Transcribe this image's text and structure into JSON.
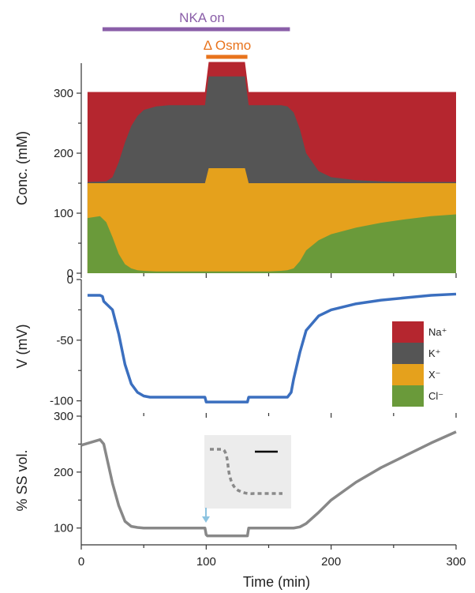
{
  "chart_data": [
    {
      "panel": "concentration",
      "type": "area",
      "ylabel": "Conc. (mM)",
      "xlim": [
        0,
        300
      ],
      "ylim": [
        0,
        350
      ],
      "yticks": [
        0,
        100,
        200,
        300
      ],
      "series": [
        {
          "name": "Cl⁻",
          "color": "#6a9a3a",
          "x": [
            5,
            15,
            20,
            25,
            30,
            35,
            40,
            45,
            50,
            60,
            70,
            80,
            90,
            100,
            110,
            120,
            130,
            140,
            150,
            160,
            165,
            170,
            175,
            180,
            190,
            200,
            220,
            240,
            260,
            280,
            300
          ],
          "y": [
            92,
            95,
            85,
            60,
            32,
            15,
            8,
            5,
            4,
            3,
            3,
            3,
            3,
            3,
            3,
            3,
            3,
            3,
            3,
            4,
            5,
            8,
            20,
            38,
            55,
            65,
            76,
            84,
            90,
            95,
            98
          ]
        },
        {
          "name": "X⁻",
          "color": "#e5a11c",
          "x": [
            5,
            99,
            102,
            131,
            134,
            300
          ],
          "y": [
            150,
            150,
            175,
            175,
            150,
            150
          ]
        },
        {
          "name": "K⁺",
          "color": "#555555",
          "x": [
            5,
            20,
            25,
            30,
            35,
            40,
            45,
            50,
            60,
            70,
            80,
            90,
            99,
            102,
            131,
            134,
            140,
            150,
            160,
            165,
            170,
            175,
            180,
            190,
            200,
            220,
            240,
            260,
            280,
            300
          ],
          "y": [
            152,
            153,
            160,
            185,
            218,
            245,
            262,
            272,
            278,
            280,
            280,
            280,
            280,
            328,
            328,
            280,
            280,
            280,
            280,
            278,
            268,
            240,
            200,
            170,
            160,
            155,
            153,
            152,
            152,
            152
          ]
        },
        {
          "name": "Na⁺",
          "color": "#b5262f",
          "x": [
            5,
            99,
            102,
            131,
            134,
            300
          ],
          "y": [
            302,
            302,
            352,
            352,
            302,
            302
          ]
        }
      ],
      "annotations": [
        {
          "text": "NKA on",
          "x_start": 17,
          "x_end": 167,
          "color": "#8a5ea8"
        },
        {
          "text": "Δ Osmo",
          "x_start": 100,
          "x_end": 133,
          "color": "#e8731c"
        }
      ]
    },
    {
      "panel": "voltage",
      "type": "line",
      "ylabel": "V (mV)",
      "xlim": [
        0,
        300
      ],
      "ylim": [
        -110,
        0
      ],
      "yticks": [
        -100,
        -50,
        0
      ],
      "series": [
        {
          "color": "#3b6fbf",
          "x": [
            5,
            15,
            17,
            18,
            20,
            25,
            30,
            35,
            40,
            45,
            50,
            55,
            60,
            70,
            80,
            90,
            99,
            100,
            101,
            130,
            133,
            134,
            140,
            150,
            160,
            165,
            168,
            170,
            175,
            180,
            190,
            200,
            220,
            240,
            260,
            280,
            300
          ],
          "y": [
            -13,
            -13,
            -14,
            -18,
            -20,
            -25,
            -45,
            -70,
            -86,
            -93,
            -96,
            -97,
            -97,
            -97,
            -97,
            -97,
            -97,
            -101,
            -101,
            -101,
            -101,
            -97,
            -97,
            -97,
            -97,
            -97,
            -93,
            -82,
            -60,
            -42,
            -30,
            -25,
            -20,
            -17,
            -15,
            -13,
            -12
          ]
        }
      ],
      "legend": {
        "position": "right",
        "entries": [
          "Na⁺",
          "K⁺",
          "X⁻",
          "Cl⁻"
        ]
      }
    },
    {
      "panel": "volume",
      "type": "line",
      "ylabel": "% SS vol.",
      "xlabel": "Time (min)",
      "xlim": [
        0,
        300
      ],
      "ylim": [
        70,
        300
      ],
      "yticks": [
        100,
        200,
        300
      ],
      "xticks": [
        0,
        100,
        200,
        300
      ],
      "series": [
        {
          "color": "#888888",
          "x": [
            0,
            15,
            18,
            20,
            25,
            30,
            35,
            40,
            45,
            50,
            60,
            70,
            80,
            90,
            99,
            100,
            101,
            131,
            133,
            134,
            140,
            150,
            160,
            170,
            175,
            180,
            190,
            200,
            220,
            240,
            260,
            280,
            300
          ],
          "y": [
            248,
            258,
            250,
            230,
            180,
            140,
            112,
            103,
            101,
            100,
            100,
            100,
            100,
            100,
            100,
            88,
            86,
            86,
            86,
            100,
            100,
            100,
            100,
            100,
            102,
            108,
            128,
            150,
            182,
            208,
            230,
            252,
            272
          ]
        }
      ],
      "arrow_at_x": 100
    }
  ]
}
